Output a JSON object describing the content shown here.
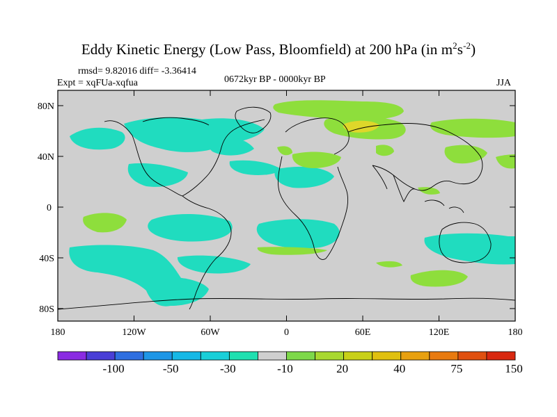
{
  "title": {
    "main": "Eddy Kinetic Energy (Low Pass, Bloomfield) at 200 hPa (in m",
    "sup1": "2",
    "mid": "s",
    "sup2": "-2",
    "close": ")"
  },
  "stats": {
    "rmsd": "rmsd= 9.82016 diff= -3.36414"
  },
  "experiment": "Expt = xqFUa-xqfua",
  "period": "0672kyr BP - 0000kyr BP",
  "season": "JJA",
  "axes": {
    "y_ticks": [
      "80N",
      "40N",
      "0",
      "40S",
      "80S"
    ],
    "x_ticks": [
      "180",
      "120W",
      "60W",
      "0",
      "60E",
      "120E",
      "180"
    ]
  },
  "colorbar": {
    "colors": [
      "#8a2be2",
      "#4a3fd6",
      "#2f6fe0",
      "#1e96e6",
      "#16b8e6",
      "#19cfd8",
      "#1fe0b0",
      "#cfcfcf",
      "#7dd84a",
      "#a8d830",
      "#c8d018",
      "#e0c010",
      "#e8a010",
      "#e87a10",
      "#e05010",
      "#d82810"
    ],
    "labels": [
      "-100",
      "-50",
      "-30",
      "-10",
      "20",
      "40",
      "75",
      "150"
    ]
  },
  "palette": {
    "land_bg": "#cfcfcf",
    "neg_cyan": "#20dcbf",
    "pos_green": "#8ede3c",
    "pos_yellow": "#ded72a"
  }
}
